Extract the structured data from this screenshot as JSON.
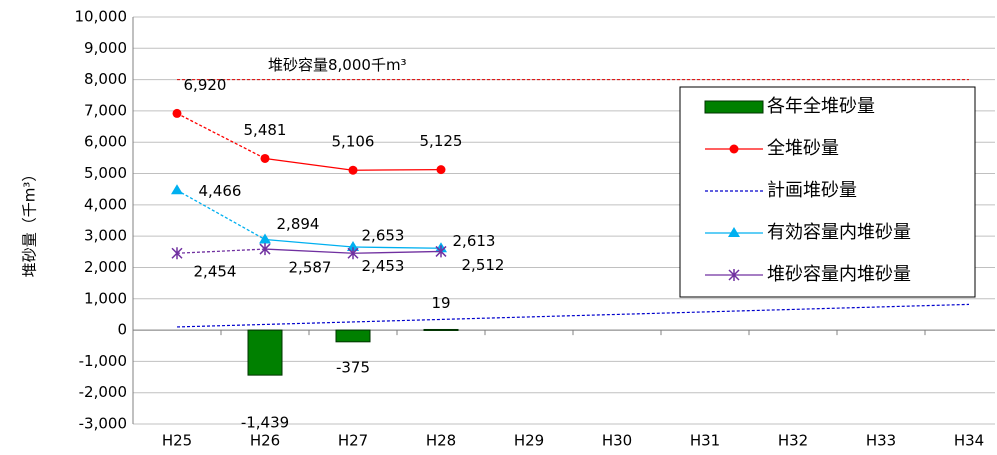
{
  "chart_data": {
    "type": "combo",
    "y_axis_label": "堆砂量（千m³）",
    "categories": [
      "H25",
      "H26",
      "H27",
      "H28",
      "H29",
      "H30",
      "H31",
      "H32",
      "H33",
      "H34"
    ],
    "ylim": [
      -3000,
      10000
    ],
    "yticks": [
      {
        "value": -3000,
        "label": "-3,000"
      },
      {
        "value": -2000,
        "label": "-2,000"
      },
      {
        "value": -1000,
        "label": "-1,000"
      },
      0,
      {
        "value": 1000,
        "label": "1,000"
      },
      {
        "value": 2000,
        "label": "2,000"
      },
      {
        "value": 3000,
        "label": "3,000"
      },
      {
        "value": 4000,
        "label": "4,000"
      },
      {
        "value": 5000,
        "label": "5,000"
      },
      {
        "value": 6000,
        "label": "6,000"
      },
      {
        "value": 7000,
        "label": "7,000"
      },
      {
        "value": 8000,
        "label": "8,000"
      },
      {
        "value": 9000,
        "label": "9,000"
      },
      {
        "value": 10000,
        "label": "10,000"
      }
    ],
    "grid": true,
    "reference_line": {
      "value": 8000,
      "label": "堆砂容量8,000千m³",
      "color": "#e00000"
    },
    "series": [
      {
        "name": "各年全堆砂量",
        "kind": "bar",
        "color": "#008000",
        "values": [
          null,
          -1439,
          -375,
          19,
          null,
          null,
          null,
          null,
          null,
          null
        ],
        "value_labels": [
          null,
          "-1,439",
          "-375",
          "19",
          null,
          null,
          null,
          null,
          null,
          null
        ]
      },
      {
        "name": "全堆砂量",
        "kind": "line",
        "marker": "circle",
        "color": "#ff0000",
        "values": [
          6920,
          5481,
          5106,
          5125,
          null,
          null,
          null,
          null,
          null,
          null
        ],
        "value_labels": [
          "6,920",
          "5,481",
          "5,106",
          "5,125",
          null,
          null,
          null,
          null,
          null,
          null
        ]
      },
      {
        "name": "計画堆砂量",
        "kind": "dashed",
        "color": "#0000cc",
        "values": [
          100,
          180,
          260,
          340,
          420,
          500,
          580,
          660,
          740,
          820
        ]
      },
      {
        "name": "有効容量内堆砂量",
        "kind": "line",
        "marker": "triangle",
        "color": "#00b0f0",
        "values": [
          4466,
          2894,
          2653,
          2613,
          null,
          null,
          null,
          null,
          null,
          null
        ],
        "value_labels": [
          "4,466",
          "2,894",
          "2,653",
          "2,613",
          null,
          null,
          null,
          null,
          null,
          null
        ]
      },
      {
        "name": "堆砂容量内堆砂量",
        "kind": "line",
        "marker": "star",
        "color": "#7030a0",
        "values": [
          2454,
          2587,
          2453,
          2512,
          null,
          null,
          null,
          null,
          null,
          null
        ],
        "value_labels": [
          "2,454",
          "2,587",
          "2,453",
          "2,512",
          null,
          null,
          null,
          null,
          null,
          null
        ]
      }
    ]
  }
}
